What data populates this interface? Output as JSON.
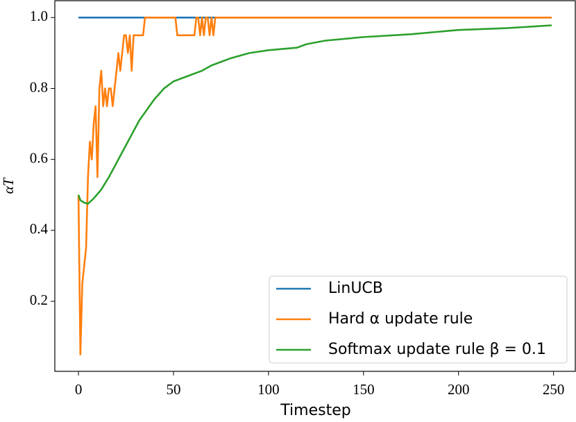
{
  "chart_data": {
    "type": "line",
    "xlabel": "Timestep",
    "ylabel": "αT",
    "xlim": [
      -12.45,
      261.45
    ],
    "ylim": [
      0.0025,
      1.0475
    ],
    "xticks": [
      0,
      50,
      100,
      150,
      200,
      250
    ],
    "yticks": [
      0.2,
      0.4,
      0.6,
      0.8,
      {
        "value": 1,
        "label": "1.0"
      }
    ],
    "legend": "lower right",
    "series": [
      {
        "name": "LinUCB",
        "color": "#1f77b4",
        "x": [
          0,
          249
        ],
        "values": [
          1,
          1
        ]
      },
      {
        "name": "Hard α update rule",
        "color": "#ff7f0e",
        "x": [
          0,
          1,
          2,
          3,
          4,
          5,
          6,
          7,
          8,
          9,
          10,
          11,
          12,
          13,
          14,
          15,
          16,
          17,
          18,
          19,
          20,
          21,
          22,
          23,
          24,
          25,
          26,
          27,
          28,
          29,
          30,
          34,
          35,
          51,
          52,
          61,
          62,
          63,
          64,
          65,
          66,
          67,
          68,
          69,
          70,
          71,
          72,
          249
        ],
        "values": [
          0.5,
          0.05,
          0.25,
          0.3,
          0.35,
          0.55,
          0.65,
          0.6,
          0.7,
          0.75,
          0.55,
          0.8,
          0.85,
          0.75,
          0.8,
          0.75,
          0.8,
          0.8,
          0.75,
          0.8,
          0.85,
          0.9,
          0.85,
          0.9,
          0.95,
          0.95,
          0.9,
          0.95,
          0.85,
          0.95,
          0.95,
          0.95,
          1,
          1,
          0.95,
          0.95,
          1,
          1,
          0.95,
          1,
          0.95,
          1,
          1,
          0.95,
          1,
          0.95,
          1,
          1
        ]
      },
      {
        "name": "Softmax update rule β = 0.1",
        "color": "#2ca02c",
        "x": [
          0,
          1,
          3,
          5,
          8,
          12,
          16,
          20,
          24,
          28,
          32,
          36,
          40,
          45,
          50,
          55,
          60,
          65,
          70,
          75,
          80,
          90,
          100,
          115,
          120,
          130,
          150,
          175,
          200,
          225,
          249
        ],
        "values": [
          0.5,
          0.485,
          0.478,
          0.475,
          0.49,
          0.515,
          0.55,
          0.59,
          0.63,
          0.67,
          0.71,
          0.74,
          0.77,
          0.8,
          0.82,
          0.83,
          0.84,
          0.85,
          0.865,
          0.875,
          0.885,
          0.9,
          0.908,
          0.915,
          0.925,
          0.935,
          0.945,
          0.953,
          0.965,
          0.97,
          0.978
        ]
      }
    ]
  }
}
